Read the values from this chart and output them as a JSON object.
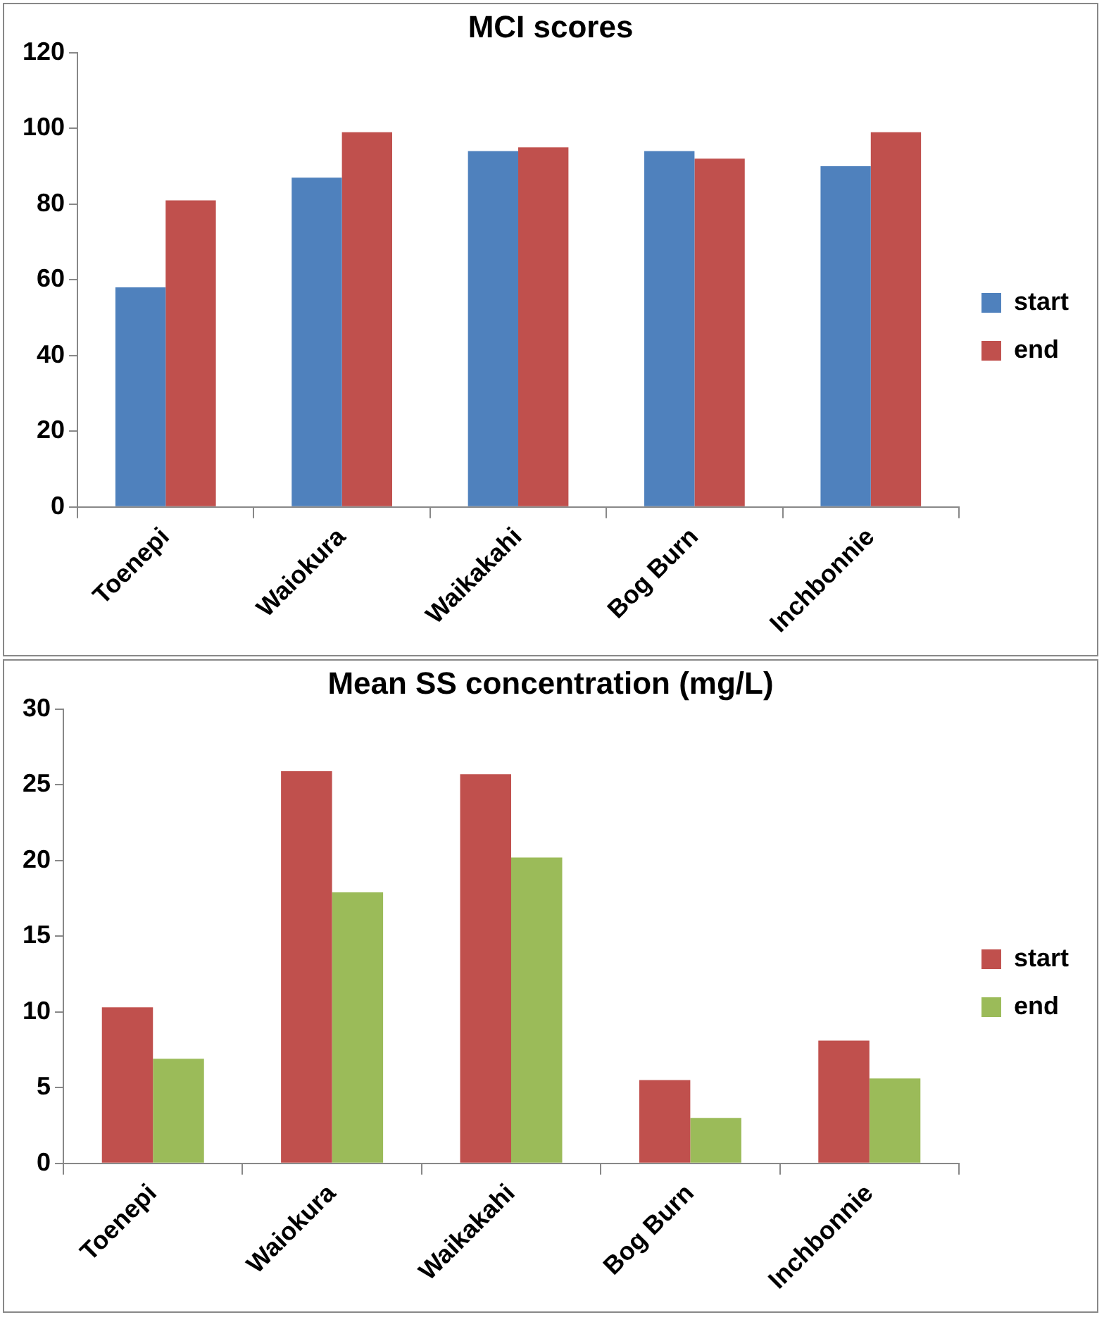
{
  "chart_data": [
    {
      "type": "bar",
      "title": "MCI scores",
      "categories": [
        "Toenepi",
        "Waiokura",
        "Waikakahi",
        "Bog Burn",
        "Inchbonnie"
      ],
      "series": [
        {
          "name": "start",
          "color": "#4f81bd",
          "values": [
            58,
            87,
            94,
            94,
            90
          ]
        },
        {
          "name": "end",
          "color": "#c0504d",
          "values": [
            81,
            99,
            95,
            92,
            99
          ]
        }
      ],
      "ylim": [
        0,
        120
      ],
      "yticks": [
        0,
        20,
        40,
        60,
        80,
        100,
        120
      ],
      "grid": false,
      "legend": "right"
    },
    {
      "type": "bar",
      "title": "Mean SS concentration (mg/L)",
      "categories": [
        "Toenepi",
        "Waiokura",
        "Waikakahi",
        "Bog Burn",
        "Inchbonnie"
      ],
      "series": [
        {
          "name": "start",
          "color": "#c0504d",
          "values": [
            10.3,
            25.9,
            25.7,
            5.5,
            8.1
          ]
        },
        {
          "name": "end",
          "color": "#9bbb59",
          "values": [
            6.9,
            17.9,
            20.2,
            3.0,
            5.6
          ]
        }
      ],
      "ylim": [
        0,
        30
      ],
      "yticks": [
        0,
        5,
        10,
        15,
        20,
        25,
        30
      ],
      "grid": false,
      "legend": "right"
    }
  ]
}
